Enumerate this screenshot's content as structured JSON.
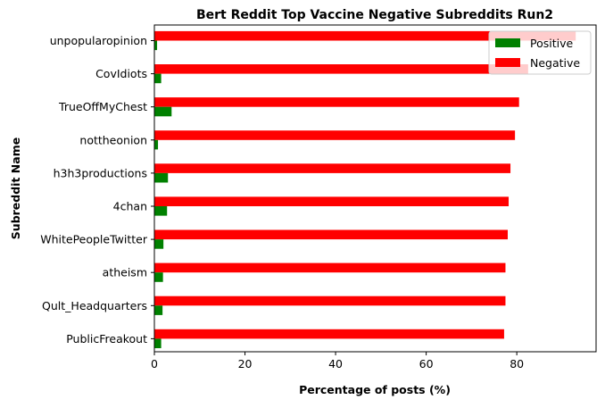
{
  "chart_data": {
    "type": "bar",
    "orientation": "horizontal",
    "title": "Bert Reddit Top Vaccine Negative Subreddits Run2",
    "xlabel": "Percentage of posts (%)",
    "ylabel": "Subreddit Name",
    "xlim": [
      0,
      97.5
    ],
    "xticks": [
      0,
      20,
      40,
      60,
      80
    ],
    "grid": false,
    "legend_position": "top-right",
    "categories": [
      "unpopularopinion",
      "CovIdiots",
      "TrueOffMyChest",
      "nottheonion",
      "h3h3productions",
      "4chan",
      "WhitePeopleTwitter",
      "atheism",
      "Qult_Headquarters",
      "PublicFreakout"
    ],
    "series": [
      {
        "name": "Positive",
        "color": "#008000",
        "values": [
          0.6,
          1.5,
          3.8,
          0.8,
          3.0,
          2.8,
          2.0,
          1.9,
          1.8,
          1.5
        ]
      },
      {
        "name": "Negative",
        "color": "#ff0000",
        "values": [
          93.0,
          82.5,
          80.5,
          79.6,
          78.6,
          78.2,
          78.0,
          77.5,
          77.5,
          77.2
        ]
      }
    ]
  }
}
